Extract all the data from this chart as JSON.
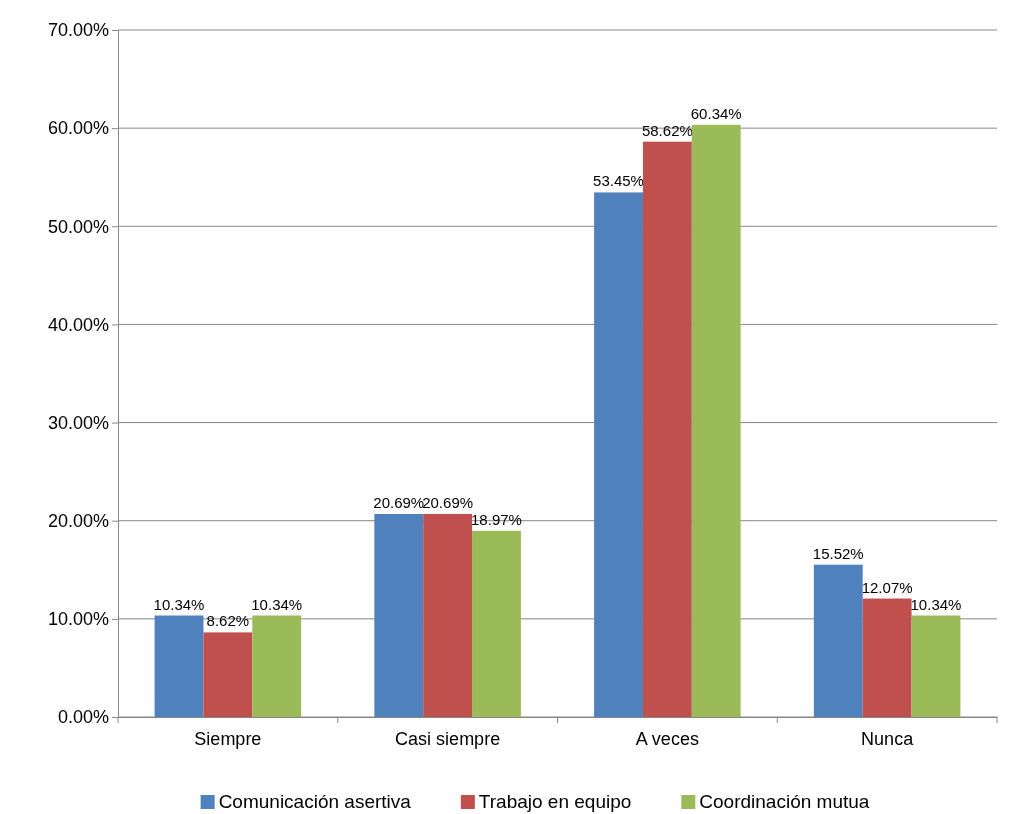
{
  "chart_data": {
    "type": "bar",
    "categories": [
      "Siempre",
      "Casi siempre",
      "A veces",
      "Nunca"
    ],
    "series": [
      {
        "name": "Comunicación asertiva",
        "color": "#4f81bd",
        "values": [
          10.34,
          20.69,
          53.45,
          15.52
        ],
        "value_labels": [
          "10.34%",
          "20.69%",
          "53.45%",
          "15.52%"
        ]
      },
      {
        "name": "Trabajo en equipo",
        "color": "#c0504d",
        "values": [
          8.62,
          20.69,
          58.62,
          12.07
        ],
        "value_labels": [
          "8.62%",
          "20.69%",
          "58.62%",
          "12.07%"
        ]
      },
      {
        "name": "Coordinación mutua",
        "color": "#9bbb59",
        "values": [
          10.34,
          18.97,
          60.34,
          10.34
        ],
        "value_labels": [
          "10.34%",
          "18.97%",
          "60.34%",
          "10.34%"
        ]
      }
    ],
    "ylim": [
      0,
      70
    ],
    "yticks": [
      {
        "value": 0,
        "label": "0.00%"
      },
      {
        "value": 10,
        "label": "10.00%"
      },
      {
        "value": 20,
        "label": "20.00%"
      },
      {
        "value": 30,
        "label": "30.00%"
      },
      {
        "value": 40,
        "label": "40.00%"
      },
      {
        "value": 50,
        "label": "50.00%"
      },
      {
        "value": 60,
        "label": "60.00%"
      },
      {
        "value": 70,
        "label": "70.00%"
      }
    ],
    "grid": "y",
    "legend": "bottom"
  }
}
